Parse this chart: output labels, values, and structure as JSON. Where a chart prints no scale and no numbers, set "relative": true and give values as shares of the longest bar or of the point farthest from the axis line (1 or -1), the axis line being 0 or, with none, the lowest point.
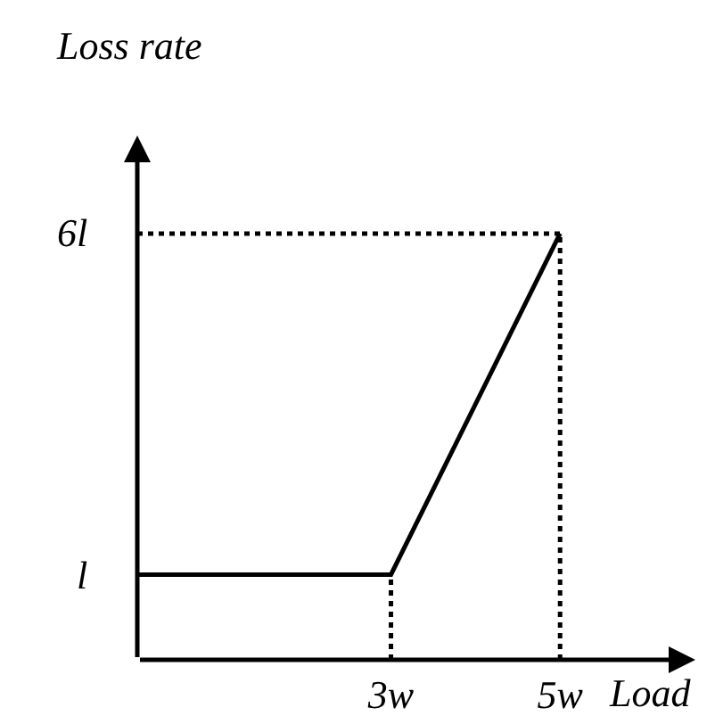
{
  "chart_data": {
    "type": "line",
    "xlabel": "Load",
    "ylabel": "Loss rate",
    "relative": true,
    "xlim": [
      0,
      6.6
    ],
    "xticks": [
      {
        "value": 3,
        "label": "3w"
      },
      {
        "value": 5,
        "label": "5w"
      }
    ],
    "annotations": [
      {
        "text": "l",
        "x": 0,
        "y": 0.2
      },
      {
        "text": "6l",
        "x": 0,
        "y": 1
      }
    ],
    "grid": false,
    "marker": "none",
    "series": [
      {
        "color": "#000000",
        "x": [
          0,
          3,
          5
        ],
        "values": [
          0.2,
          0.2,
          1
        ],
        "line_style": "solid"
      },
      {
        "color": "#000000",
        "x": [
          3,
          3
        ],
        "values": [
          0,
          0.2
        ],
        "line_style": "dotted"
      },
      {
        "color": "#000000",
        "x": [
          5,
          5
        ],
        "values": [
          0,
          1
        ],
        "line_style": "dotted"
      },
      {
        "color": "#000000",
        "x": [
          0,
          5
        ],
        "values": [
          1,
          1
        ],
        "line_style": "dotted"
      }
    ]
  }
}
